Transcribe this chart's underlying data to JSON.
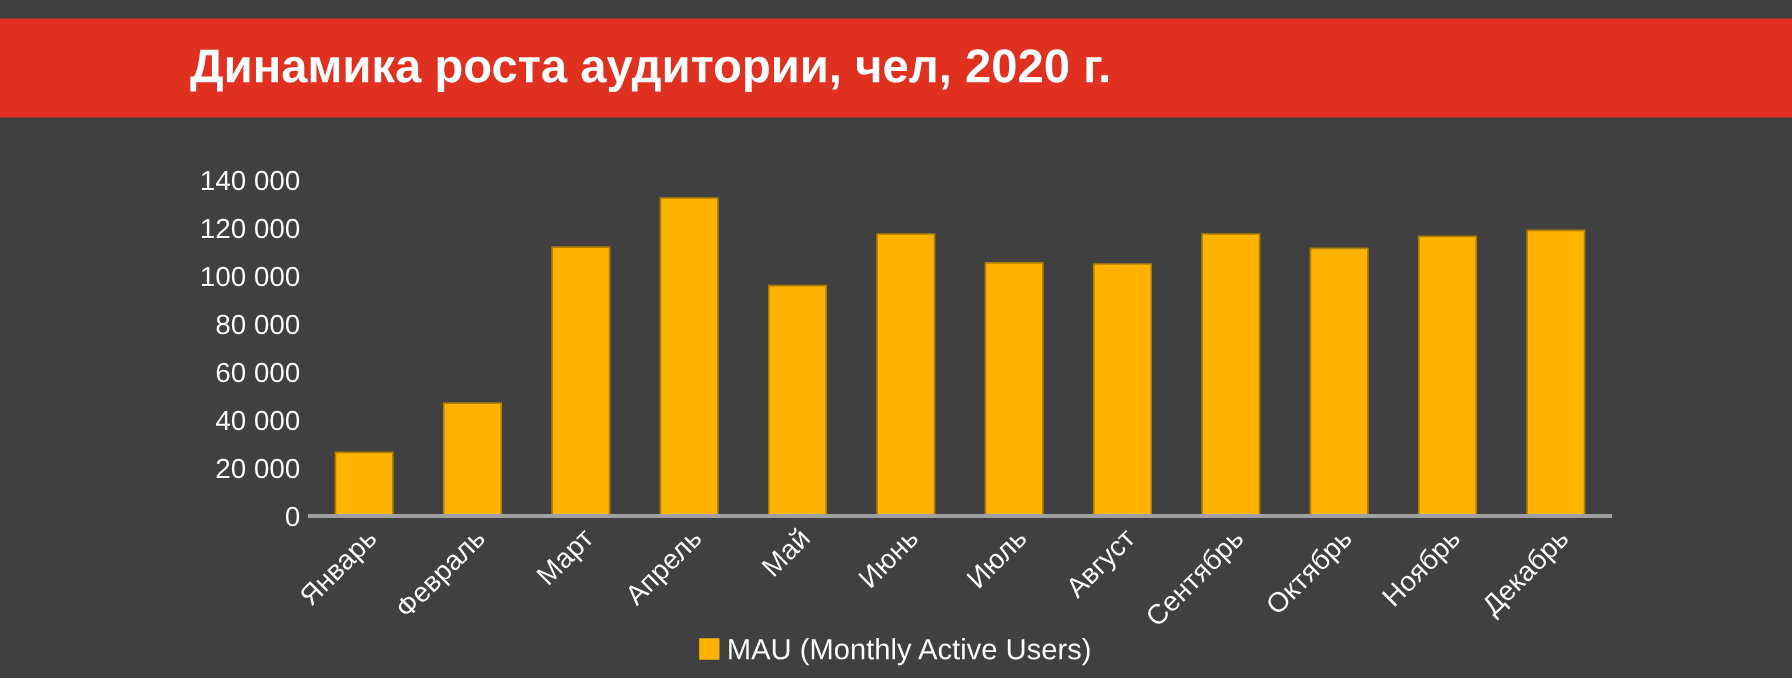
{
  "chart_data": {
    "type": "bar",
    "title": "Динамика роста аудитории, чел, 2020 г.",
    "categories": [
      "Январь",
      "Февраль",
      "Март",
      "Апрель",
      "Май",
      "Июнь",
      "Июль",
      "Август",
      "Сентябрь",
      "Октябрь",
      "Ноябрь",
      "Декабрь"
    ],
    "series": [
      {
        "name": "MAU (Monthly Active Users)",
        "color": "#ffb300",
        "values": [
          26500,
          47000,
          112000,
          132500,
          96000,
          117500,
          105500,
          105000,
          117500,
          111500,
          116500,
          119000
        ]
      }
    ],
    "ylim": [
      0,
      140000
    ],
    "yticks": [
      {
        "value": 0,
        "label": "0"
      },
      {
        "value": 20000,
        "label": "20 000"
      },
      {
        "value": 40000,
        "label": "40 000"
      },
      {
        "value": 60000,
        "label": "60 000"
      },
      {
        "value": 80000,
        "label": "80 000"
      },
      {
        "value": 100000,
        "label": "100 000"
      },
      {
        "value": 120000,
        "label": "120 000"
      },
      {
        "value": 140000,
        "label": "140 000"
      }
    ],
    "grid": false,
    "legend": "bottom"
  }
}
